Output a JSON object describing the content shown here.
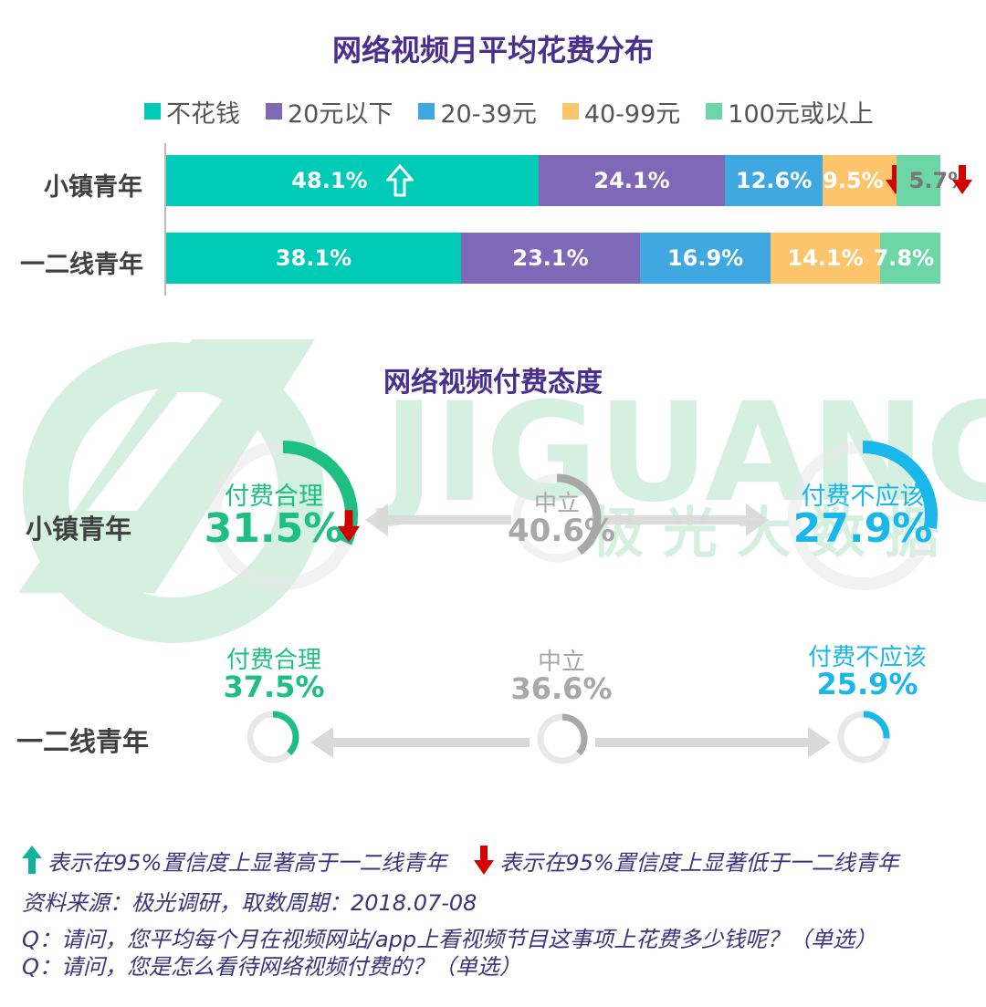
{
  "colors": {
    "title": "#4a2f8f",
    "green": "#1dbf84",
    "gray": "#a8a8a8",
    "blue": "#1ab7ea",
    "down_arrow": "#d40000",
    "up_arrow": "#0fb29a",
    "watermark": "#c7ebd7"
  },
  "chart_data": [
    {
      "type": "bar",
      "orientation": "horizontal-stacked",
      "title": "网络视频月平均花费分布",
      "categories": [
        "小镇青年",
        "一二线青年"
      ],
      "legend_position": "top",
      "series": [
        {
          "name": "不花钱",
          "color": "#00cbb7",
          "values": [
            48.1,
            38.1
          ],
          "labels": [
            "48.1%",
            "38.1%"
          ],
          "markers": [
            "up",
            ""
          ]
        },
        {
          "name": "20元以下",
          "color": "#7f68b8",
          "values": [
            24.1,
            23.1
          ],
          "labels": [
            "24.1%",
            "23.1%"
          ],
          "markers": [
            "",
            ""
          ]
        },
        {
          "name": "20-39元",
          "color": "#3fa8e0",
          "values": [
            12.6,
            16.9
          ],
          "labels": [
            "12.6%",
            "16.9%"
          ],
          "markers": [
            "",
            ""
          ]
        },
        {
          "name": "40-99元",
          "color": "#fcc46b",
          "values": [
            9.5,
            14.1
          ],
          "labels": [
            "9.5%",
            "14.1%"
          ],
          "markers": [
            "down",
            ""
          ]
        },
        {
          "name": "100元或以上",
          "color": "#6dd6a6",
          "values": [
            5.7,
            7.8
          ],
          "labels": [
            "5.7%",
            "7.8%"
          ],
          "markers": [
            "down",
            ""
          ]
        }
      ]
    },
    {
      "type": "pie",
      "variant": "donut",
      "title": "网络视频付费态度",
      "groups": [
        {
          "name": "小镇青年",
          "items": [
            {
              "label": "付费合理",
              "value": 31.5,
              "text": "31.5%",
              "color": "#1dbf84",
              "marker": "down"
            },
            {
              "label": "中立",
              "value": 40.6,
              "text": "40.6%",
              "color": "#a8a8a8",
              "marker": ""
            },
            {
              "label": "付费不应该",
              "value": 27.9,
              "text": "27.9%",
              "color": "#1ab7ea",
              "marker": ""
            }
          ]
        },
        {
          "name": "一二线青年",
          "items": [
            {
              "label": "付费合理",
              "value": 37.5,
              "text": "37.5%",
              "color": "#1dbf84",
              "marker": ""
            },
            {
              "label": "中立",
              "value": 36.6,
              "text": "36.6%",
              "color": "#a8a8a8",
              "marker": ""
            },
            {
              "label": "付费不应该",
              "value": 25.9,
              "text": "25.9%",
              "color": "#1ab7ea",
              "marker": ""
            }
          ]
        }
      ]
    }
  ],
  "watermark": {
    "brand": "JIGUANG",
    "cn": "极 光 大 数 据"
  },
  "footer": {
    "up_note": "表示在95%置信度上显著高于一二线青年",
    "down_note": "表示在95%置信度上显著低于一二线青年",
    "source": "资料来源：极光调研，取数周期：2018.07-08",
    "q1": "Q：请问，您平均每个月在视频网站/app上看视频节目这事项上花费多少钱呢？（单选）",
    "q2": "Q：请问，您是怎么看待网络视频付费的？（单选）"
  }
}
